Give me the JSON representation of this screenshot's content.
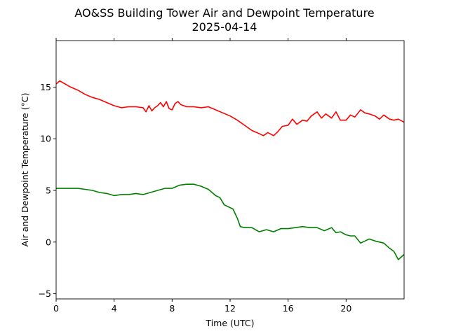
{
  "chart_data": {
    "type": "line",
    "title": "AO&SS Building Tower Air and Dewpoint Temperature",
    "subtitle": "2025-04-14",
    "xlabel": "Time (UTC)",
    "ylabel": "Air and Dewpoint Temperature (°C)",
    "xlim": [
      0,
      24
    ],
    "ylim": [
      -5.5,
      19.5
    ],
    "xticks": [
      0,
      4,
      8,
      12,
      16,
      20
    ],
    "xtick_labels": [
      "0",
      "4",
      "8",
      "12",
      "16",
      "20"
    ],
    "yticks": [
      -5,
      0,
      5,
      10,
      15
    ],
    "ytick_labels": [
      "−5",
      "0",
      "5",
      "10",
      "15"
    ],
    "grid": false,
    "legend": "none",
    "series": [
      {
        "color": "#ff0000",
        "x": [
          0,
          0.25,
          0.5,
          1,
          1.5,
          2,
          2.5,
          3,
          3.5,
          4,
          4.5,
          5,
          5.5,
          6,
          6.2,
          6.4,
          6.6,
          6.8,
          7,
          7.2,
          7.4,
          7.6,
          7.8,
          8,
          8.2,
          8.4,
          8.6,
          8.8,
          9,
          9.5,
          10,
          10.5,
          11,
          11.5,
          12,
          12.5,
          13,
          13.5,
          14,
          14.3,
          14.6,
          15,
          15.3,
          15.6,
          16,
          16.3,
          16.6,
          17,
          17.3,
          17.6,
          18,
          18.3,
          18.6,
          19,
          19.3,
          19.6,
          20,
          20.3,
          20.6,
          21,
          21.3,
          21.6,
          22,
          22.3,
          22.6,
          23,
          23.3,
          23.6,
          24
        ],
        "values": [
          15.3,
          15.6,
          15.4,
          15.0,
          14.7,
          14.3,
          14.0,
          13.8,
          13.5,
          13.2,
          13.0,
          13.1,
          13.1,
          13.0,
          12.6,
          13.2,
          12.7,
          13.0,
          13.2,
          13.5,
          13.1,
          13.6,
          12.9,
          12.8,
          13.4,
          13.6,
          13.3,
          13.2,
          13.1,
          13.1,
          13.0,
          13.1,
          12.8,
          12.5,
          12.2,
          11.8,
          11.3,
          10.8,
          10.5,
          10.3,
          10.6,
          10.3,
          10.7,
          11.2,
          11.3,
          11.9,
          11.4,
          11.8,
          11.7,
          12.2,
          12.6,
          12.0,
          12.4,
          12.0,
          12.6,
          11.8,
          11.8,
          12.3,
          12.1,
          12.8,
          12.5,
          12.4,
          12.2,
          11.9,
          12.3,
          11.9,
          11.8,
          11.9,
          11.6
        ]
      },
      {
        "color": "#008000",
        "x": [
          0,
          0.5,
          1,
          1.5,
          2,
          2.5,
          3,
          3.5,
          4,
          4.5,
          5,
          5.5,
          6,
          6.5,
          7,
          7.5,
          8,
          8.5,
          9,
          9.5,
          10,
          10.5,
          11,
          11.3,
          11.6,
          11.9,
          12.2,
          12.5,
          12.7,
          13,
          13.5,
          14,
          14.5,
          15,
          15.5,
          16,
          16.5,
          17,
          17.5,
          18,
          18.5,
          19,
          19.3,
          19.6,
          20,
          20.3,
          20.6,
          21,
          21.3,
          21.6,
          22,
          22.3,
          22.6,
          23,
          23.3,
          23.6,
          24
        ],
        "values": [
          5.2,
          5.2,
          5.2,
          5.2,
          5.1,
          5.0,
          4.8,
          4.7,
          4.5,
          4.6,
          4.6,
          4.7,
          4.6,
          4.8,
          5.0,
          5.2,
          5.2,
          5.5,
          5.6,
          5.6,
          5.4,
          5.1,
          4.5,
          4.3,
          3.6,
          3.4,
          3.2,
          2.3,
          1.5,
          1.4,
          1.4,
          1.0,
          1.2,
          1.0,
          1.3,
          1.3,
          1.4,
          1.5,
          1.4,
          1.4,
          1.1,
          1.4,
          0.9,
          1.0,
          0.7,
          0.6,
          0.6,
          -0.1,
          0.1,
          0.3,
          0.1,
          0.0,
          -0.1,
          -0.6,
          -0.9,
          -1.7,
          -1.2
        ]
      }
    ]
  }
}
